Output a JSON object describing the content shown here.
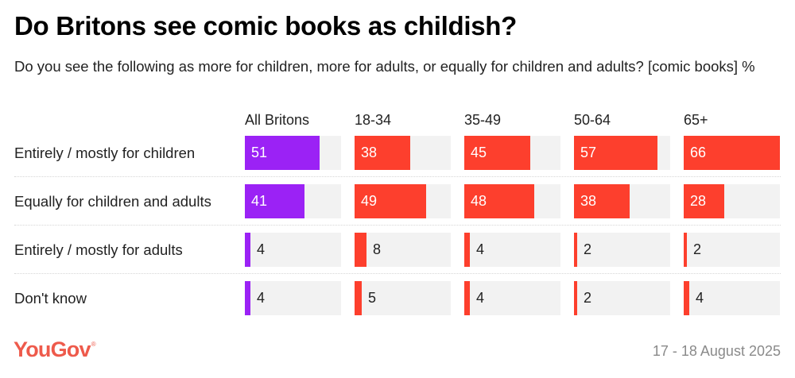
{
  "header": {
    "title": "Do Britons see comic books as childish?",
    "subtitle": "Do you see the following as more for children, more for adults, or equally for children and adults? [comic books] %"
  },
  "footer": {
    "brand": "YouGov",
    "brand_mark": "®",
    "date": "17 - 18 August 2025"
  },
  "colors": {
    "all_britons": "#9b22f5",
    "age_groups": "#fd3f2d",
    "track": "#f2f2f2",
    "brand": "#ee5a4b"
  },
  "chart_data": {
    "type": "bar",
    "orientation": "horizontal",
    "layout": "small-multiples",
    "title": "Do Britons see comic books as childish?",
    "subtitle": "Do you see the following as more for children, more for adults, or equally for children and adults? [comic books] %",
    "categories": [
      "Entirely / mostly for children",
      "Equally for children and adults",
      "Entirely / mostly for adults",
      "Don't know"
    ],
    "series": [
      {
        "name": "All Britons",
        "color": "#9b22f5",
        "values": [
          51,
          41,
          4,
          4
        ]
      },
      {
        "name": "18-34",
        "color": "#fd3f2d",
        "values": [
          38,
          49,
          8,
          5
        ]
      },
      {
        "name": "35-49",
        "color": "#fd3f2d",
        "values": [
          45,
          48,
          4,
          4
        ]
      },
      {
        "name": "50-64",
        "color": "#fd3f2d",
        "values": [
          57,
          38,
          2,
          2
        ]
      },
      {
        "name": "65+",
        "color": "#fd3f2d",
        "values": [
          66,
          28,
          2,
          4
        ]
      }
    ],
    "xlim": [
      0,
      66
    ],
    "unit": "%",
    "grid": false,
    "legend": "none",
    "source_date": "17 - 18 August 2025"
  }
}
